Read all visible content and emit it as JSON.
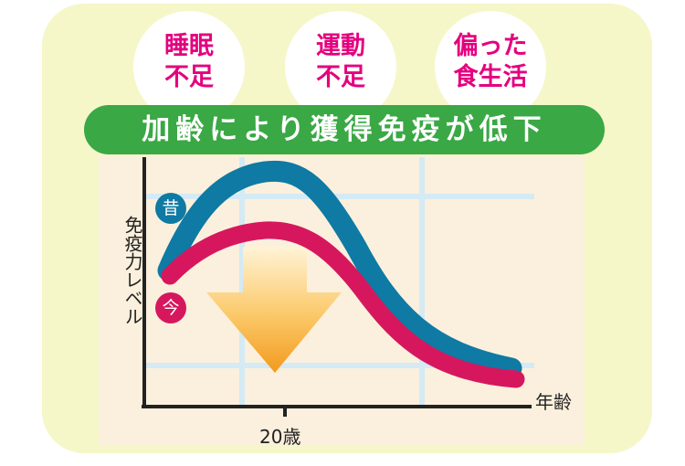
{
  "factors": [
    {
      "line1": "睡眠",
      "line2": "不足"
    },
    {
      "line1": "運動",
      "line2": "不足"
    },
    {
      "line1": "偏った",
      "line2": "食生活"
    }
  ],
  "banner": "加齢により獲得免疫が低下",
  "chart_data": {
    "type": "line",
    "ylabel": "免疫力レベル",
    "xlabel": "年齢",
    "x_tick": "20歳",
    "series": [
      {
        "name": "昔",
        "color": "#0f7aa3"
      },
      {
        "name": "今",
        "color": "#d6175e"
      }
    ],
    "arrow_color": "#f5a623"
  }
}
